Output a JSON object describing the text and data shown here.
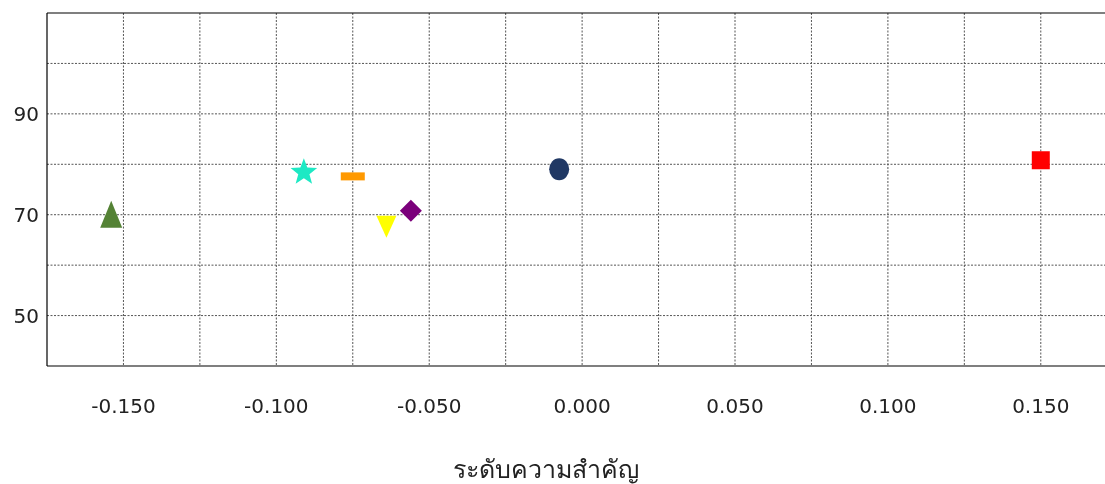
{
  "chart_data": {
    "type": "scatter",
    "xlabel": "ระดับความสำคัญ",
    "xlim": [
      -0.175,
      0.171
    ],
    "ylim": [
      40,
      110
    ],
    "xticks": [
      {
        "value": -0.15,
        "label": "-0.150"
      },
      {
        "value": -0.125,
        "label": null
      },
      {
        "value": -0.1,
        "label": "-0.100"
      },
      {
        "value": -0.075,
        "label": null
      },
      {
        "value": -0.05,
        "label": "-0.050"
      },
      {
        "value": -0.025,
        "label": null
      },
      {
        "value": 0,
        "label": "0.000"
      },
      {
        "value": 0.025,
        "label": null
      },
      {
        "value": 0.05,
        "label": "0.050"
      },
      {
        "value": 0.075,
        "label": null
      },
      {
        "value": 0.1,
        "label": "0.100"
      },
      {
        "value": 0.125,
        "label": null
      },
      {
        "value": 0.15,
        "label": "0.150"
      }
    ],
    "yticks": [
      50,
      {
        "value": 60,
        "label": null
      },
      70,
      {
        "value": 80,
        "label": null
      },
      90,
      {
        "value": 100,
        "label": null
      }
    ],
    "grid": true,
    "line_style": "dotted",
    "series": [
      {
        "color": "#548235",
        "marker": "triangle",
        "x": [
          -0.154
        ],
        "values": [
          70
        ]
      },
      {
        "color": "#1de9c4",
        "marker": "star",
        "x": [
          -0.091
        ],
        "values": [
          78.4
        ]
      },
      {
        "color": "#ff9900",
        "x": [
          -0.075
        ],
        "values": [
          77.6
        ]
      },
      {
        "color": "#ffff00",
        "marker": "triangle-down",
        "x": [
          -0.064
        ],
        "values": [
          67.6
        ]
      },
      {
        "color": "#7b007b",
        "marker": "diamond",
        "x": [
          -0.056
        ],
        "values": [
          70.8
        ]
      },
      {
        "color": "#203864",
        "marker": "circle",
        "x": [
          -0.0075
        ],
        "values": [
          79
        ]
      },
      {
        "color": "#ff0000",
        "marker": "square",
        "x": [
          0.15
        ],
        "values": [
          80.8
        ]
      }
    ]
  }
}
